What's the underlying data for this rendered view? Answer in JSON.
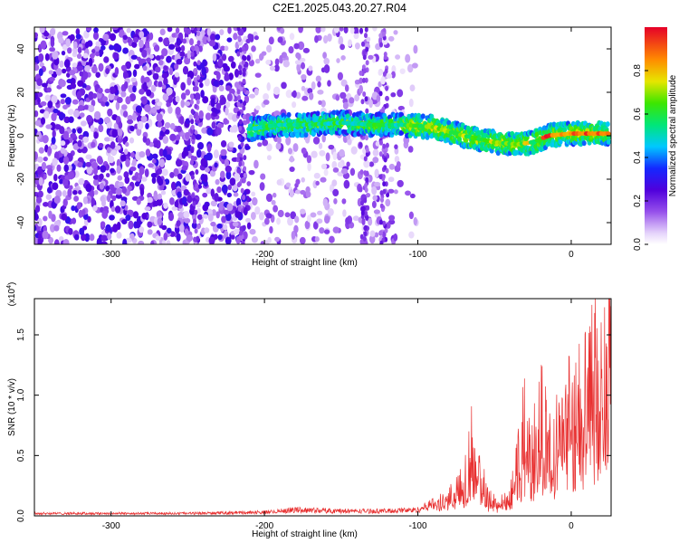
{
  "figure": {
    "title": "C2E1.2025.043.20.27.R04"
  },
  "chart_data": [
    {
      "type": "heatmap",
      "xlabel": "Height of straight line (km)",
      "ylabel": "Frequency (Hz)",
      "xlim": [
        -350,
        26
      ],
      "ylim": [
        -50,
        50
      ],
      "xticks": [
        -300,
        -200,
        -100,
        0
      ],
      "yticks": [
        -40,
        -20,
        0,
        20,
        40
      ],
      "colorbar": {
        "label": "Normalized spectral amplitude",
        "range": [
          0.0,
          1.0
        ],
        "ticks": [
          "0.0",
          "0.2",
          "0.4",
          "0.6",
          "0.8"
        ],
        "colormap": "purple-blue-cyan-green-yellow-red"
      },
      "ridge": {
        "description_points_x": [
          -210,
          -190,
          -170,
          -150,
          -130,
          -110,
          -90,
          -70,
          -50,
          -35,
          -25,
          -15,
          0,
          10,
          25
        ],
        "description_points_y": [
          3,
          5,
          5,
          6,
          5,
          5,
          4,
          0,
          -3,
          -4,
          -3,
          0,
          1,
          1,
          1
        ]
      },
      "noise_extent_x": [
        -350,
        -110
      ]
    },
    {
      "type": "line",
      "title_scale": "(x10",
      "title_scale_exp": "4",
      "title_scale_close": ")",
      "xlabel": "Height of straight line (km)",
      "ylabel": "SNR (10 * v/v)",
      "xlim": [
        -350,
        26
      ],
      "ylim": [
        0,
        1.8
      ],
      "xticks": [
        -300,
        -200,
        -100,
        0
      ],
      "yticks": [
        0.0,
        0.5,
        1.0,
        1.5
      ],
      "ytick_labels": [
        "0.0",
        "0.5",
        "1.0",
        "1.5"
      ],
      "series": [
        {
          "color": "#e83030",
          "x": [
            -350,
            -300,
            -250,
            -200,
            -180,
            -150,
            -120,
            -100,
            -90,
            -80,
            -70,
            -65,
            -60,
            -55,
            -50,
            -45,
            -40,
            -35,
            -30,
            -25,
            -20,
            -15,
            -10,
            -5,
            0,
            5,
            10,
            15,
            20,
            26
          ],
          "y": [
            0.02,
            0.02,
            0.02,
            0.03,
            0.05,
            0.04,
            0.04,
            0.05,
            0.1,
            0.2,
            0.4,
            0.75,
            0.55,
            0.2,
            0.15,
            0.15,
            0.2,
            0.55,
            1.0,
            0.7,
            1.1,
            0.75,
            0.8,
            1.05,
            1.15,
            1.3,
            1.4,
            1.5,
            1.6,
            1.7
          ]
        }
      ]
    }
  ],
  "colors": {
    "axis": "#000000",
    "snr_line": "#e83030"
  }
}
